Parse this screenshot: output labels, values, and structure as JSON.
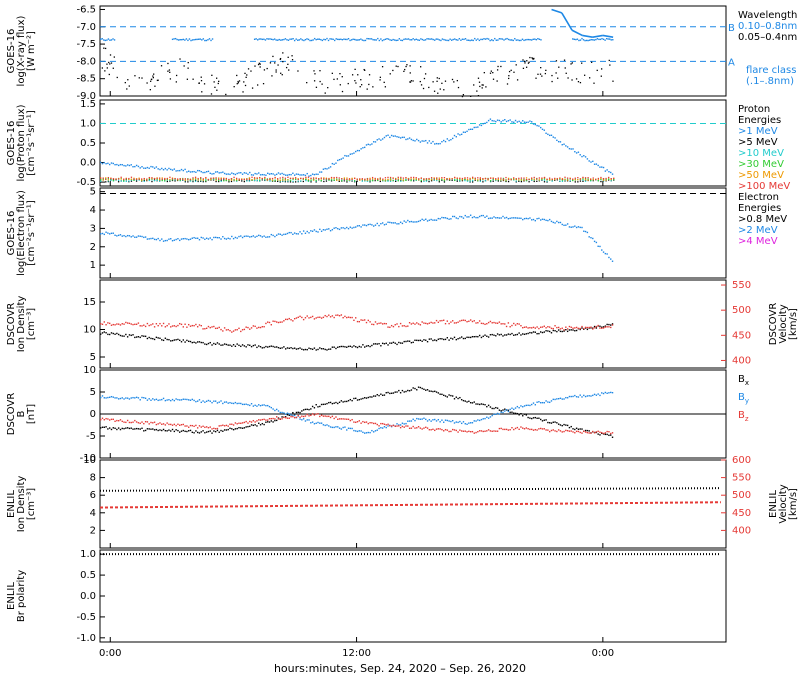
{
  "figure": {
    "xlabel": "hours:minutes, Sep. 24, 2020 – Sep. 26, 2020",
    "xticks": [
      "0:00",
      "12:00",
      "0:00"
    ]
  },
  "colors": {
    "black": "#000000",
    "blue": "#1e88e5",
    "cyan": "#22cccc",
    "green": "#33cc33",
    "orange": "#ee9900",
    "red": "#e53935",
    "magenta": "#dd22dd"
  },
  "chart_data": [
    {
      "id": "xray",
      "type": "scatter",
      "ylabel_lines": [
        "GOES-16",
        "log(X-ray flux)",
        "[W m⁻²]"
      ],
      "yticks": [
        "-6.5",
        "-7.0",
        "-7.5",
        "-8.0",
        "-8.5",
        "-9.0"
      ],
      "ylim": [
        -9.0,
        -6.4
      ],
      "legend_title": "Wavelength",
      "legend": [
        {
          "label": "0.10–0.8nm",
          "color": "blue"
        },
        {
          "label": "0.05–0.4nm",
          "color": "black"
        }
      ],
      "flare_class_label": [
        "flare class",
        "(.1–.8nm)"
      ],
      "flare_levels": [
        {
          "label": "B",
          "y": -7.0
        },
        {
          "label": "A",
          "y": -8.0
        }
      ],
      "series": [
        {
          "name": "0.10–0.8nm",
          "color": "blue",
          "segments": [
            [
              -2,
              1
            ],
            [
              4,
              -7.3
            ],
            [
              22,
              -7.4
            ],
            [
              44,
              -7.38
            ]
          ],
          "extra": [
            [
              86,
              -6.5
            ],
            [
              88,
              -6.6
            ],
            [
              90,
              -7.1
            ],
            [
              92,
              -7.25
            ],
            [
              94,
              -7.3
            ],
            [
              96,
              -7.25
            ],
            [
              98,
              -7.3
            ]
          ]
        },
        {
          "name": "0.05–0.4nm",
          "color": "black",
          "scatter": [
            [
              -2,
              -7.8
            ],
            [
              4,
              -8.6
            ],
            [
              14,
              -8.2
            ],
            [
              22,
              -8.9
            ],
            [
              34,
              -8.0
            ],
            [
              40,
              -8.6
            ],
            [
              58,
              -8.3
            ],
            [
              68,
              -8.9
            ],
            [
              80,
              -8.2
            ],
            [
              94,
              -8.3
            ]
          ]
        }
      ]
    },
    {
      "id": "proton",
      "type": "scatter",
      "ylabel_lines": [
        "GOES-16",
        "log(Proton flux)",
        "[cm⁻²s⁻¹sr⁻¹]"
      ],
      "yticks": [
        "1.5",
        "1.0",
        "0.5",
        "0.0",
        "-0.5"
      ],
      "ylim": [
        -0.6,
        1.6
      ],
      "legend_title": [
        "Proton",
        "Energies"
      ],
      "legend": [
        {
          "label": ">1 MeV",
          "color": "blue"
        },
        {
          "label": ">5 MeV",
          "color": "black"
        },
        {
          "label": ">10 MeV",
          "color": "cyan"
        },
        {
          "label": ">30 MeV",
          "color": "green"
        },
        {
          "label": ">50 MeV",
          "color": "orange"
        },
        {
          "label": ">100 MeV",
          "color": "red"
        }
      ],
      "threshold": 1.0,
      "series": [
        {
          "name": ">1 MeV",
          "color": "blue",
          "trend": [
            [
              -2,
              0.0
            ],
            [
              20,
              -0.25
            ],
            [
              40,
              -0.3
            ],
            [
              46,
              0.2
            ],
            [
              54,
              0.7
            ],
            [
              64,
              0.5
            ],
            [
              74,
              1.1
            ],
            [
              82,
              1.05
            ],
            [
              88,
              0.5
            ],
            [
              98,
              -0.3
            ]
          ]
        }
      ]
    },
    {
      "id": "electron",
      "type": "scatter",
      "ylabel_lines": [
        "GOES-16",
        "log(Electron flux)",
        "[cm⁻²s⁻¹sr⁻¹]"
      ],
      "yticks": [
        "5",
        "4",
        "3",
        "2",
        "1"
      ],
      "ylim": [
        0.3,
        5.2
      ],
      "legend_title": [
        "Electron",
        "Energies"
      ],
      "legend": [
        {
          "label": ">0.8 MeV",
          "color": "black"
        },
        {
          "label": ">2 MeV",
          "color": "blue"
        },
        {
          "label": ">4 MeV",
          "color": "magenta"
        }
      ],
      "threshold": 4.9,
      "series": [
        {
          "name": ">2 MeV",
          "color": "blue",
          "trend": [
            [
              -2,
              2.8
            ],
            [
              10,
              2.4
            ],
            [
              30,
              2.6
            ],
            [
              50,
              3.2
            ],
            [
              70,
              3.7
            ],
            [
              85,
              3.5
            ],
            [
              92,
              3.0
            ],
            [
              96,
              1.8
            ],
            [
              98,
              1.2
            ]
          ]
        }
      ]
    },
    {
      "id": "dscovr_density",
      "type": "scatter",
      "ylabel_lines": [
        "DSCOVR",
        "Ion Density",
        "[cm⁻³]"
      ],
      "yticks_left": [
        "15",
        "10",
        "5"
      ],
      "ylim_left": [
        3,
        19
      ],
      "ylabel_right_lines": [
        "DSCOVR",
        "Velocity",
        "[km/s]"
      ],
      "yticks_right": [
        "550",
        "500",
        "450",
        "400"
      ],
      "ylim_right": [
        385,
        560
      ],
      "series": [
        {
          "name": "Ion Density",
          "color": "black",
          "trend": [
            [
              -2,
              9.5
            ],
            [
              20,
              7.5
            ],
            [
              40,
              6.5
            ],
            [
              54,
              7.5
            ],
            [
              60,
              8
            ],
            [
              74,
              9
            ],
            [
              90,
              10
            ],
            [
              98,
              11
            ]
          ]
        },
        {
          "name": "Velocity",
          "color": "red",
          "trend": [
            [
              -2,
              475
            ],
            [
              16,
              470
            ],
            [
              24,
              460
            ],
            [
              36,
              485
            ],
            [
              44,
              490
            ],
            [
              54,
              470
            ],
            [
              60,
              475
            ],
            [
              70,
              480
            ],
            [
              80,
              470
            ],
            [
              90,
              465
            ],
            [
              98,
              470
            ]
          ]
        }
      ]
    },
    {
      "id": "dscovr_b",
      "type": "scatter",
      "ylabel_lines": [
        "DSCOVR",
        "B",
        "[nT]"
      ],
      "yticks": [
        "10",
        "5",
        "0",
        "-5",
        "-10"
      ],
      "ylim": [
        -10,
        10
      ],
      "legend": [
        {
          "label": "Bx",
          "sub": "x",
          "color": "black"
        },
        {
          "label": "By",
          "sub": "y",
          "color": "blue"
        },
        {
          "label": "Bz",
          "sub": "z",
          "color": "red"
        }
      ],
      "series": [
        {
          "name": "Bx",
          "color": "black",
          "trend": [
            [
              -2,
              -3
            ],
            [
              20,
              -4
            ],
            [
              30,
              -2
            ],
            [
              40,
              2
            ],
            [
              50,
              4
            ],
            [
              60,
              6
            ],
            [
              70,
              3
            ],
            [
              80,
              0
            ],
            [
              90,
              -3
            ],
            [
              98,
              -5
            ]
          ]
        },
        {
          "name": "By",
          "color": "blue",
          "trend": [
            [
              -2,
              4
            ],
            [
              20,
              3
            ],
            [
              30,
              2
            ],
            [
              40,
              -2
            ],
            [
              50,
              -4
            ],
            [
              60,
              -1
            ],
            [
              70,
              -2
            ],
            [
              80,
              2
            ],
            [
              90,
              4
            ],
            [
              98,
              5
            ]
          ]
        },
        {
          "name": "Bz",
          "color": "red",
          "trend": [
            [
              -2,
              -1
            ],
            [
              20,
              -3
            ],
            [
              30,
              -1
            ],
            [
              40,
              0
            ],
            [
              50,
              -2
            ],
            [
              60,
              -3
            ],
            [
              70,
              -4
            ],
            [
              80,
              -3
            ],
            [
              90,
              -4
            ],
            [
              98,
              -4
            ]
          ]
        }
      ]
    },
    {
      "id": "enlil_density",
      "type": "line",
      "ylabel_lines": [
        "ENLIL",
        "Ion Density",
        "[cm⁻³]"
      ],
      "yticks_left": [
        "10",
        "8",
        "6",
        "4",
        "2"
      ],
      "ylim_left": [
        0,
        10
      ],
      "ylabel_right_lines": [
        "ENLIL",
        "Velocity",
        "[km/s]"
      ],
      "yticks_right": [
        "600",
        "550",
        "500",
        "450",
        "400"
      ],
      "ylim_right": [
        350,
        600
      ],
      "series": [
        {
          "name": "Ion Density",
          "color": "black",
          "style": "dotted",
          "x": [
            -2,
            120
          ],
          "y": [
            6.5,
            6.8
          ]
        },
        {
          "name": "Velocity",
          "color": "red",
          "style": "dashed",
          "x": [
            -2,
            120
          ],
          "y": [
            465,
            480
          ]
        }
      ]
    },
    {
      "id": "enlil_polarity",
      "type": "line",
      "ylabel_lines": [
        "ENLIL",
        "Br polarity"
      ],
      "yticks": [
        "1.0",
        "0.5",
        "0.0",
        "-0.5",
        "-1.0"
      ],
      "ylim": [
        -1.1,
        1.1
      ],
      "series": [
        {
          "name": "Br polarity",
          "color": "black",
          "style": "dotted",
          "x": [
            -2,
            120
          ],
          "y": [
            1.0,
            1.0
          ]
        }
      ]
    }
  ]
}
